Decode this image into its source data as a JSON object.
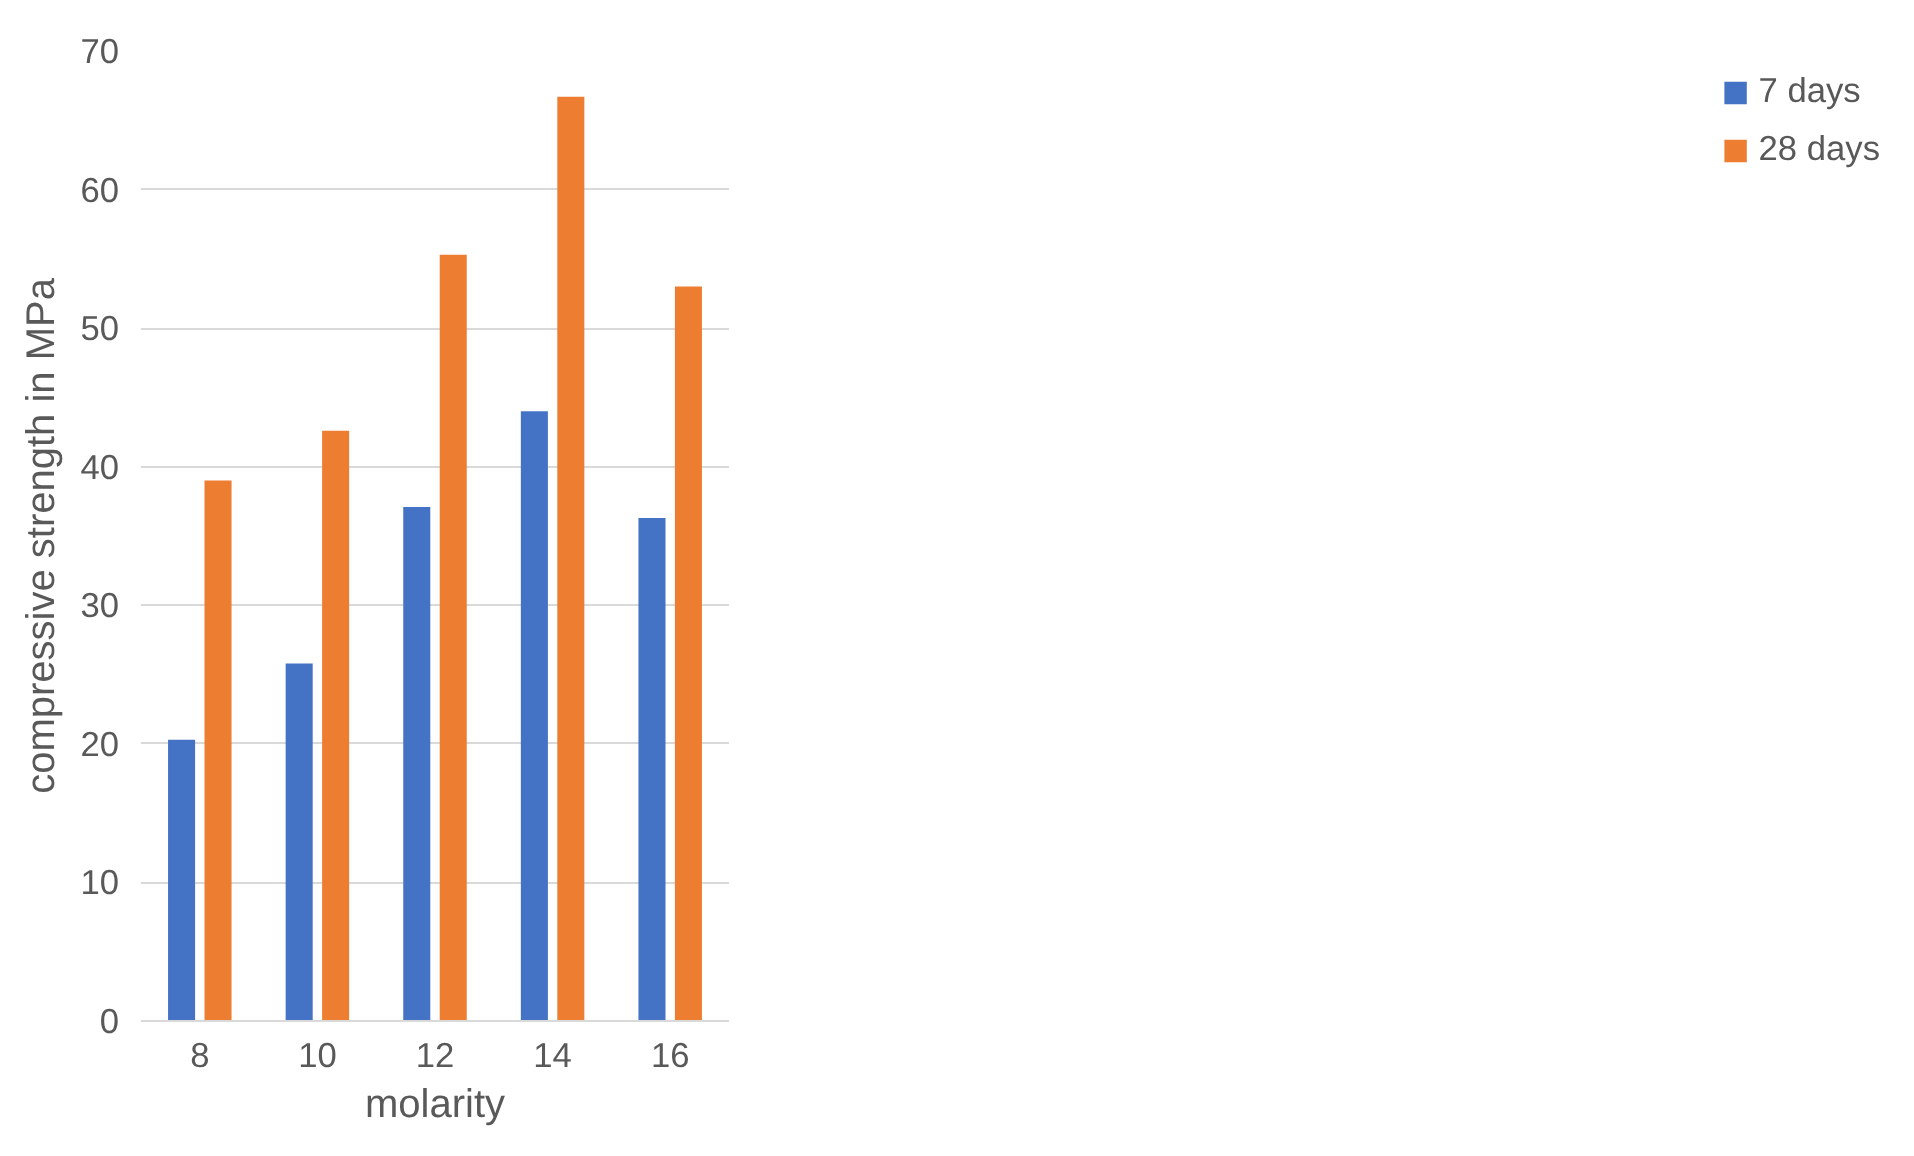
{
  "chart_data": {
    "type": "bar",
    "xlabel": "molarity",
    "ylabel": "compressive strength in MPa",
    "categories": [
      "8",
      "10",
      "12",
      "14",
      "16"
    ],
    "series": [
      {
        "name": "7 days",
        "color": "#4472c4",
        "values": [
          20.3,
          25.8,
          37.1,
          44.0,
          36.3
        ]
      },
      {
        "name": "28 days",
        "color": "#ed7d31",
        "values": [
          39.0,
          42.6,
          55.3,
          66.7,
          53.0
        ]
      }
    ],
    "ylim": [
      0,
      70
    ],
    "yticks": [
      0,
      10,
      20,
      30,
      40,
      50,
      60,
      70
    ],
    "grid": "y",
    "legend": "right"
  }
}
